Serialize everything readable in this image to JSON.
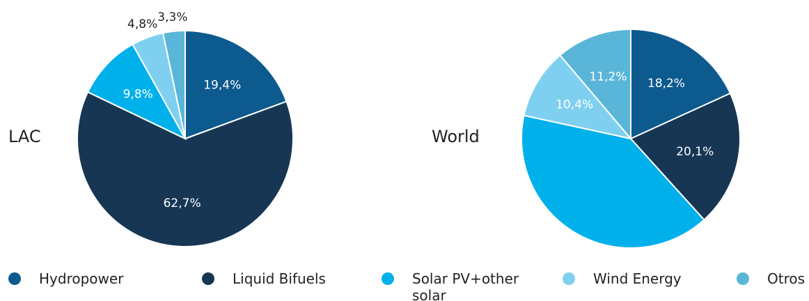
{
  "legend": {
    "names": [
      "Hydropower",
      "Liquid Bifuels",
      "Solar PV+other solar",
      "Wind Energy",
      "Otros"
    ],
    "colors": [
      "#0d5a8f",
      "#163654",
      "#00b0eb",
      "#7fd0f0",
      "#5ab6d9"
    ]
  },
  "chart_data": [
    {
      "type": "pie",
      "title": "LAC",
      "values": [
        19.4,
        62.7,
        9.8,
        4.8,
        3.3
      ],
      "value_labels": [
        "19,4%",
        "62,7%",
        "9,8%",
        "4,8%",
        "3,3%"
      ]
    },
    {
      "type": "pie",
      "title": "World",
      "values": [
        18.2,
        20.1,
        40.1,
        10.4,
        11.2
      ],
      "value_labels": [
        "18,2%",
        "20,1%",
        null,
        "10,4%",
        "11,2%"
      ]
    }
  ]
}
